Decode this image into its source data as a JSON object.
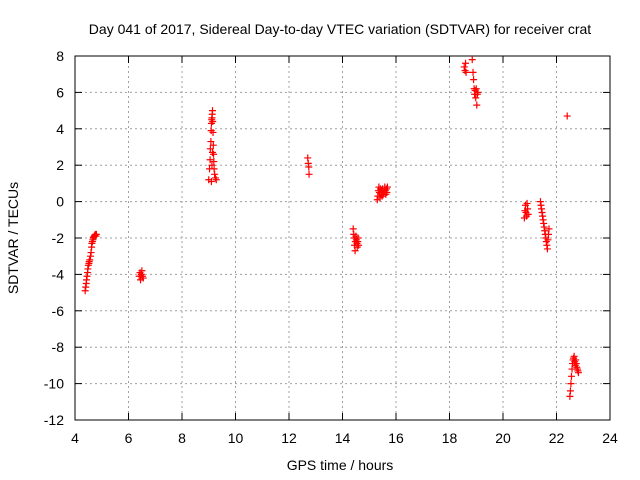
{
  "chart_data": {
    "type": "scatter",
    "title": "Day 041 of 2017, Sidereal Day-to-day VTEC variation (SDTVAR) for receiver crat",
    "xlabel": "GPS time / hours",
    "ylabel": "SDTVAR / TECUs",
    "xlim": [
      4,
      24
    ],
    "ylim": [
      -12,
      8
    ],
    "xticks": [
      4,
      6,
      8,
      10,
      12,
      14,
      16,
      18,
      20,
      22,
      24
    ],
    "yticks": [
      -12,
      -10,
      -8,
      -6,
      -4,
      -2,
      0,
      2,
      4,
      6,
      8
    ],
    "xtick_labels": [
      "4",
      "6",
      "8",
      "10",
      "12",
      "14",
      "16",
      "18",
      "20",
      "22",
      "24"
    ],
    "ytick_labels": [
      "-12",
      "-10",
      "-8",
      "-6",
      "-4",
      "-2",
      "0",
      "2",
      "4",
      "6",
      "8"
    ],
    "grid": true,
    "marker": "+",
    "series_color": "#ff0000",
    "series": [
      {
        "name": "SDTVAR",
        "points": [
          [
            4.38,
            -4.9
          ],
          [
            4.4,
            -4.7
          ],
          [
            4.42,
            -4.5
          ],
          [
            4.43,
            -4.3
          ],
          [
            4.45,
            -4.1
          ],
          [
            4.47,
            -3.9
          ],
          [
            4.48,
            -3.7
          ],
          [
            4.5,
            -3.5
          ],
          [
            4.52,
            -3.4
          ],
          [
            4.53,
            -3.3
          ],
          [
            4.55,
            -3.2
          ],
          [
            4.58,
            -3.0
          ],
          [
            4.6,
            -2.8
          ],
          [
            4.62,
            -2.5
          ],
          [
            4.63,
            -2.3
          ],
          [
            4.65,
            -2.2
          ],
          [
            4.67,
            -2.1
          ],
          [
            4.68,
            -2.0
          ],
          [
            4.7,
            -1.95
          ],
          [
            4.72,
            -1.9
          ],
          [
            4.74,
            -1.85
          ],
          [
            4.76,
            -1.8
          ],
          [
            4.78,
            -1.9
          ],
          [
            4.8,
            -1.8
          ],
          [
            6.4,
            -4.1
          ],
          [
            6.43,
            -3.9
          ],
          [
            6.45,
            -4.3
          ],
          [
            6.48,
            -4.0
          ],
          [
            6.5,
            -3.8
          ],
          [
            6.52,
            -4.1
          ],
          [
            6.55,
            -4.2
          ],
          [
            9.0,
            1.2
          ],
          [
            9.03,
            1.8
          ],
          [
            9.05,
            2.3
          ],
          [
            9.06,
            2.9
          ],
          [
            9.08,
            3.3
          ],
          [
            9.09,
            3.9
          ],
          [
            9.1,
            4.3
          ],
          [
            9.11,
            4.5
          ],
          [
            9.12,
            4.6
          ],
          [
            9.13,
            4.8
          ],
          [
            9.14,
            5.0
          ],
          [
            9.15,
            4.4
          ],
          [
            9.16,
            3.8
          ],
          [
            9.17,
            3.1
          ],
          [
            9.18,
            2.6
          ],
          [
            9.19,
            2.2
          ],
          [
            9.2,
            1.8
          ],
          [
            9.22,
            1.5
          ],
          [
            9.25,
            1.3
          ],
          [
            9.28,
            1.2
          ],
          [
            9.1,
            1.1
          ],
          [
            9.12,
            2.0
          ],
          [
            9.14,
            2.7
          ],
          [
            12.7,
            2.4
          ],
          [
            12.72,
            2.1
          ],
          [
            12.74,
            1.9
          ],
          [
            12.75,
            1.5
          ],
          [
            14.4,
            -1.5
          ],
          [
            14.42,
            -1.8
          ],
          [
            14.44,
            -2.0
          ],
          [
            14.45,
            -2.4
          ],
          [
            14.47,
            -2.7
          ],
          [
            14.48,
            -2.2
          ],
          [
            14.5,
            -1.9
          ],
          [
            14.52,
            -2.1
          ],
          [
            14.54,
            -2.3
          ],
          [
            14.55,
            -2.5
          ],
          [
            14.57,
            -2.2
          ],
          [
            14.58,
            -2.0
          ],
          [
            14.6,
            -2.4
          ],
          [
            15.3,
            0.1
          ],
          [
            15.32,
            0.3
          ],
          [
            15.34,
            0.6
          ],
          [
            15.36,
            0.8
          ],
          [
            15.38,
            0.5
          ],
          [
            15.4,
            0.2
          ],
          [
            15.42,
            0.7
          ],
          [
            15.44,
            0.4
          ],
          [
            15.46,
            0.6
          ],
          [
            15.48,
            0.3
          ],
          [
            15.5,
            0.7
          ],
          [
            15.52,
            0.4
          ],
          [
            15.55,
            0.5
          ],
          [
            15.58,
            0.8
          ],
          [
            15.6,
            0.6
          ],
          [
            15.62,
            0.4
          ],
          [
            15.64,
            0.7
          ],
          [
            15.66,
            0.5
          ],
          [
            15.68,
            0.8
          ],
          [
            18.55,
            7.4
          ],
          [
            18.58,
            7.2
          ],
          [
            18.6,
            7.6
          ],
          [
            18.62,
            7.1
          ],
          [
            18.85,
            7.8
          ],
          [
            18.88,
            7.1
          ],
          [
            18.9,
            6.7
          ],
          [
            18.92,
            6.2
          ],
          [
            18.94,
            5.9
          ],
          [
            18.96,
            6.1
          ],
          [
            18.98,
            5.7
          ],
          [
            19.0,
            6.2
          ],
          [
            19.02,
            5.3
          ],
          [
            19.04,
            5.9
          ],
          [
            19.06,
            6.0
          ],
          [
            20.8,
            -0.9
          ],
          [
            20.82,
            -0.5
          ],
          [
            20.84,
            -0.2
          ],
          [
            20.86,
            -0.6
          ],
          [
            20.88,
            -0.8
          ],
          [
            20.9,
            -0.1
          ],
          [
            20.92,
            -0.4
          ],
          [
            20.94,
            -0.7
          ],
          [
            21.4,
            0.0
          ],
          [
            21.42,
            -0.2
          ],
          [
            21.44,
            -0.4
          ],
          [
            21.46,
            -0.6
          ],
          [
            21.48,
            -0.8
          ],
          [
            21.5,
            -1.0
          ],
          [
            21.52,
            -1.2
          ],
          [
            21.54,
            -1.4
          ],
          [
            21.56,
            -1.6
          ],
          [
            21.58,
            -1.8
          ],
          [
            21.6,
            -2.0
          ],
          [
            21.62,
            -2.2
          ],
          [
            21.64,
            -2.4
          ],
          [
            21.66,
            -2.6
          ],
          [
            21.68,
            -2.1
          ],
          [
            21.7,
            -1.8
          ],
          [
            21.72,
            -1.5
          ],
          [
            22.4,
            4.7
          ],
          [
            22.5,
            -10.7
          ],
          [
            22.52,
            -10.4
          ],
          [
            22.54,
            -10.0
          ],
          [
            22.56,
            -9.6
          ],
          [
            22.58,
            -9.2
          ],
          [
            22.6,
            -8.9
          ],
          [
            22.62,
            -8.7
          ],
          [
            22.64,
            -8.6
          ],
          [
            22.66,
            -8.5
          ],
          [
            22.68,
            -8.8
          ],
          [
            22.7,
            -9.0
          ],
          [
            22.72,
            -8.7
          ],
          [
            22.74,
            -8.9
          ],
          [
            22.76,
            -9.1
          ],
          [
            22.78,
            -9.2
          ],
          [
            22.8,
            -9.3
          ],
          [
            22.82,
            -9.4
          ]
        ]
      }
    ]
  }
}
